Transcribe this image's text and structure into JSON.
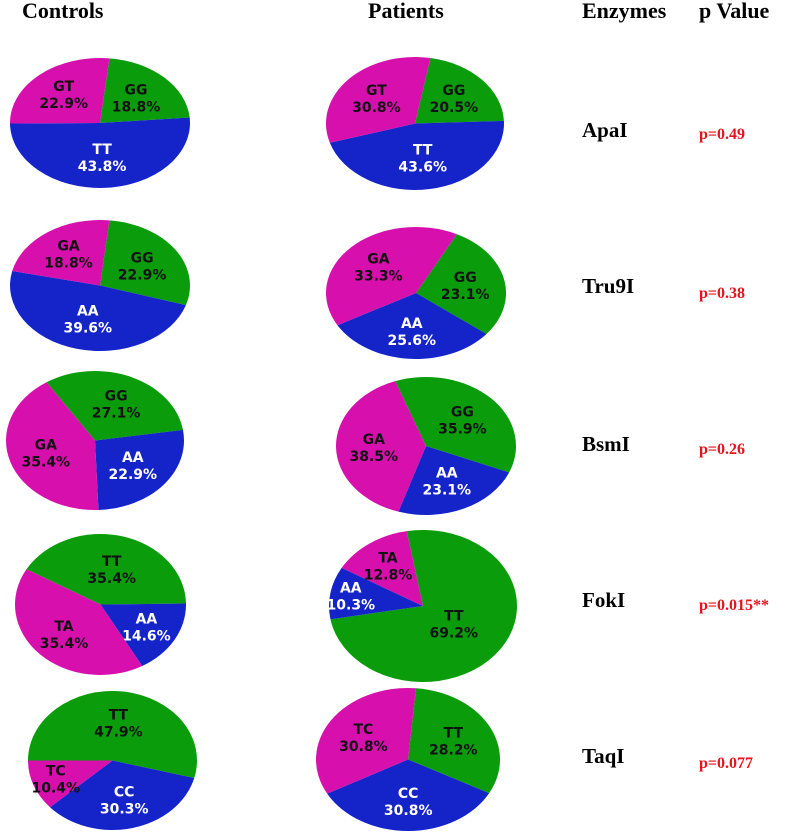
{
  "headers": {
    "controls": "Controls",
    "patients": "Patients",
    "enzymes": "Enzymes",
    "p_value": "p Value"
  },
  "colors": {
    "green": "#0a9c0a",
    "magenta": "#d60fad",
    "blue": "#1524c9",
    "pvalue": "#e8121b"
  },
  "rows": [
    {
      "enzyme": "ApaI",
      "p": "p=0.49"
    },
    {
      "enzyme": "Tru9I",
      "p": "p=0.38"
    },
    {
      "enzyme": "BsmI",
      "p": "p=0.26"
    },
    {
      "enzyme": "FokI",
      "p": "p=0.015**"
    },
    {
      "enzyme": "TaqI",
      "p": "p=0.077"
    }
  ],
  "chart_data": [
    {
      "type": "pie",
      "group": "Controls",
      "enzyme": "ApaI",
      "slices": [
        {
          "label": "GG",
          "value": 18.8,
          "color": "green"
        },
        {
          "label": "TT",
          "value": 43.8,
          "color": "blue"
        },
        {
          "label": "GT",
          "value": 22.9,
          "color": "magenta"
        }
      ]
    },
    {
      "type": "pie",
      "group": "Patients",
      "enzyme": "ApaI",
      "slices": [
        {
          "label": "GG",
          "value": 20.5,
          "color": "green"
        },
        {
          "label": "TT",
          "value": 43.6,
          "color": "blue"
        },
        {
          "label": "GT",
          "value": 30.8,
          "color": "magenta"
        }
      ]
    },
    {
      "type": "pie",
      "group": "Controls",
      "enzyme": "Tru9I",
      "slices": [
        {
          "label": "GG",
          "value": 22.9,
          "color": "green"
        },
        {
          "label": "AA",
          "value": 39.6,
          "color": "blue"
        },
        {
          "label": "GA",
          "value": 18.8,
          "color": "magenta"
        }
      ]
    },
    {
      "type": "pie",
      "group": "Patients",
      "enzyme": "Tru9I",
      "slices": [
        {
          "label": "GG",
          "value": 23.1,
          "color": "green"
        },
        {
          "label": "AA",
          "value": 25.6,
          "color": "blue"
        },
        {
          "label": "GA",
          "value": 33.3,
          "color": "magenta"
        }
      ]
    },
    {
      "type": "pie",
      "group": "Controls",
      "enzyme": "BsmI",
      "slices": [
        {
          "label": "GG",
          "value": 27.1,
          "color": "green"
        },
        {
          "label": "AA",
          "value": 22.9,
          "color": "blue"
        },
        {
          "label": "GA",
          "value": 35.4,
          "color": "magenta"
        }
      ]
    },
    {
      "type": "pie",
      "group": "Patients",
      "enzyme": "BsmI",
      "slices": [
        {
          "label": "GG",
          "value": 35.9,
          "color": "green"
        },
        {
          "label": "AA",
          "value": 23.1,
          "color": "blue"
        },
        {
          "label": "GA",
          "value": 38.5,
          "color": "magenta"
        }
      ]
    },
    {
      "type": "pie",
      "group": "Controls",
      "enzyme": "FokI",
      "slices": [
        {
          "label": "TT",
          "value": 35.4,
          "color": "green"
        },
        {
          "label": "AA",
          "value": 14.6,
          "color": "blue"
        },
        {
          "label": "TA",
          "value": 35.4,
          "color": "magenta"
        }
      ]
    },
    {
      "type": "pie",
      "group": "Patients",
      "enzyme": "FokI",
      "slices": [
        {
          "label": "TT",
          "value": 69.2,
          "color": "green"
        },
        {
          "label": "AA",
          "value": 10.3,
          "color": "blue"
        },
        {
          "label": "TA",
          "value": 12.8,
          "color": "magenta"
        }
      ]
    },
    {
      "type": "pie",
      "group": "Controls",
      "enzyme": "TaqI",
      "slices": [
        {
          "label": "TT",
          "value": 47.9,
          "color": "green"
        },
        {
          "label": "CC",
          "value": 30.3,
          "color": "blue"
        },
        {
          "label": "TC",
          "value": 10.4,
          "color": "magenta"
        }
      ]
    },
    {
      "type": "pie",
      "group": "Patients",
      "enzyme": "TaqI",
      "slices": [
        {
          "label": "TT",
          "value": 28.2,
          "color": "green"
        },
        {
          "label": "CC",
          "value": 30.8,
          "color": "blue"
        },
        {
          "label": "TC",
          "value": 30.8,
          "color": "magenta"
        }
      ]
    }
  ]
}
